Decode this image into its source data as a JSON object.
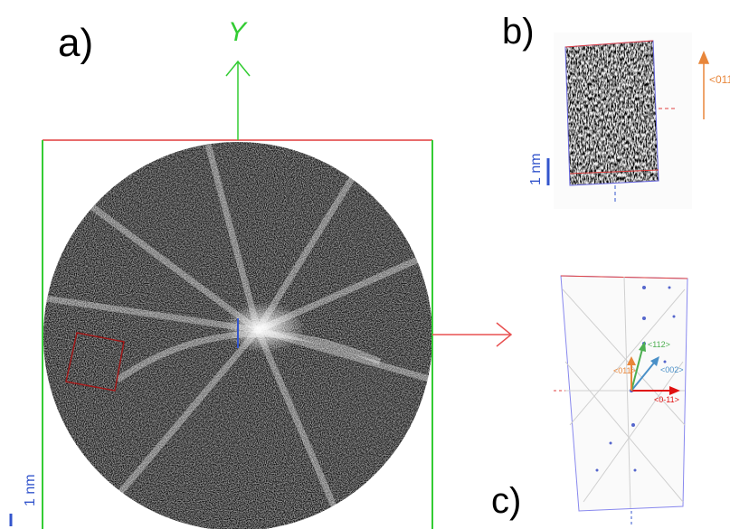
{
  "panel_a": {
    "label": "a)",
    "axis_label": "Y",
    "scale_bar": "1 nm"
  },
  "panel_b": {
    "label": "b)",
    "direction": "<011>",
    "scale_bar": "1 nm"
  },
  "panel_c": {
    "label": "c)",
    "vectors": [
      "<112>",
      "<002>",
      "<011>",
      "<0-11>"
    ]
  }
}
